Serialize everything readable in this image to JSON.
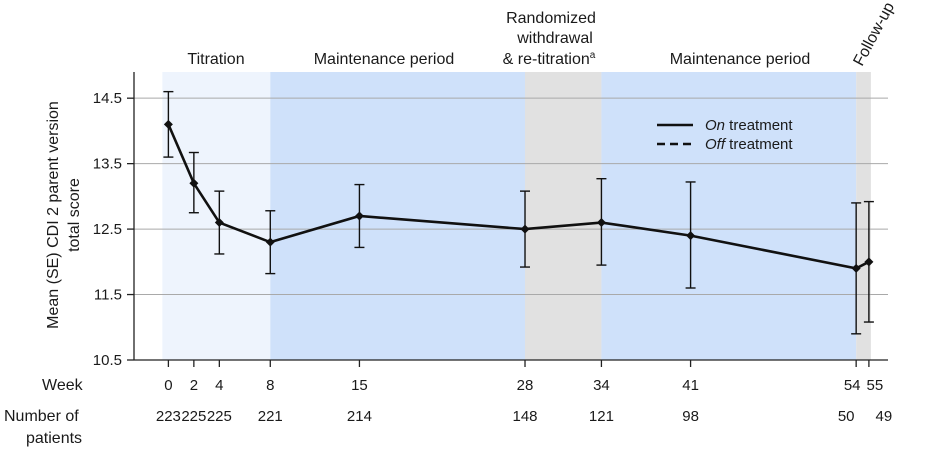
{
  "chart_data": {
    "type": "line",
    "ylabel": "Mean (SE) CDI 2 parent version total score",
    "xlabel": "Week",
    "ylim": [
      10.5,
      14.9
    ],
    "yticks": [
      10.5,
      11.5,
      12.5,
      13.5,
      14.5
    ],
    "grid": true,
    "legend_position": "top-right",
    "legend": [
      {
        "prefix": "On",
        "suffix": " treatment",
        "style": "solid"
      },
      {
        "prefix": "Off",
        "suffix": " treatment",
        "style": "dashed"
      }
    ],
    "periods": [
      {
        "label": "Titration",
        "start_week": 0,
        "end_week": 8,
        "color": "#eef4fd"
      },
      {
        "label": "Maintenance period",
        "start_week": 8,
        "end_week": 28,
        "color": "#cfe1fa"
      },
      {
        "label": "Randomized withdrawal & re-titration",
        "superscript": "a",
        "start_week": 28,
        "end_week": 34,
        "color": "#e1e1e1"
      },
      {
        "label": "Maintenance period",
        "start_week": 34,
        "end_week": 54,
        "color": "#cfe1fa"
      },
      {
        "label": "Follow-up",
        "start_week": 54,
        "end_week": 55,
        "color": "#e1e1e1"
      }
    ],
    "weeks": [
      0,
      2,
      4,
      8,
      15,
      28,
      34,
      41,
      54,
      55
    ],
    "n_row_label": "Number of patients",
    "n_row_label_lines": [
      "Number of",
      "patients"
    ],
    "patients": [
      223,
      225,
      225,
      221,
      214,
      148,
      121,
      98,
      50,
      49
    ],
    "series": [
      {
        "line_style": "solid",
        "points": [
          {
            "week": 0,
            "mean": 14.1,
            "se_low": 13.6,
            "se_high": 14.6
          },
          {
            "week": 2,
            "mean": 13.2,
            "se_low": 12.75,
            "se_high": 13.67
          },
          {
            "week": 4,
            "mean": 12.6,
            "se_low": 12.12,
            "se_high": 13.08
          },
          {
            "week": 8,
            "mean": 12.3,
            "se_low": 11.82,
            "se_high": 12.78
          },
          {
            "week": 15,
            "mean": 12.7,
            "se_low": 12.22,
            "se_high": 13.18
          },
          {
            "week": 28,
            "mean": 12.5,
            "se_low": 11.92,
            "se_high": 13.08
          },
          {
            "week": 34,
            "mean": 12.6,
            "se_low": 11.95,
            "se_high": 13.27
          },
          {
            "week": 41,
            "mean": 12.4,
            "se_low": 11.6,
            "se_high": 13.22
          },
          {
            "week": 54,
            "mean": 11.9,
            "se_low": 10.9,
            "se_high": 12.9
          },
          {
            "week": 55,
            "mean": 12.0,
            "se_low": 11.08,
            "se_high": 12.92
          }
        ]
      }
    ]
  }
}
